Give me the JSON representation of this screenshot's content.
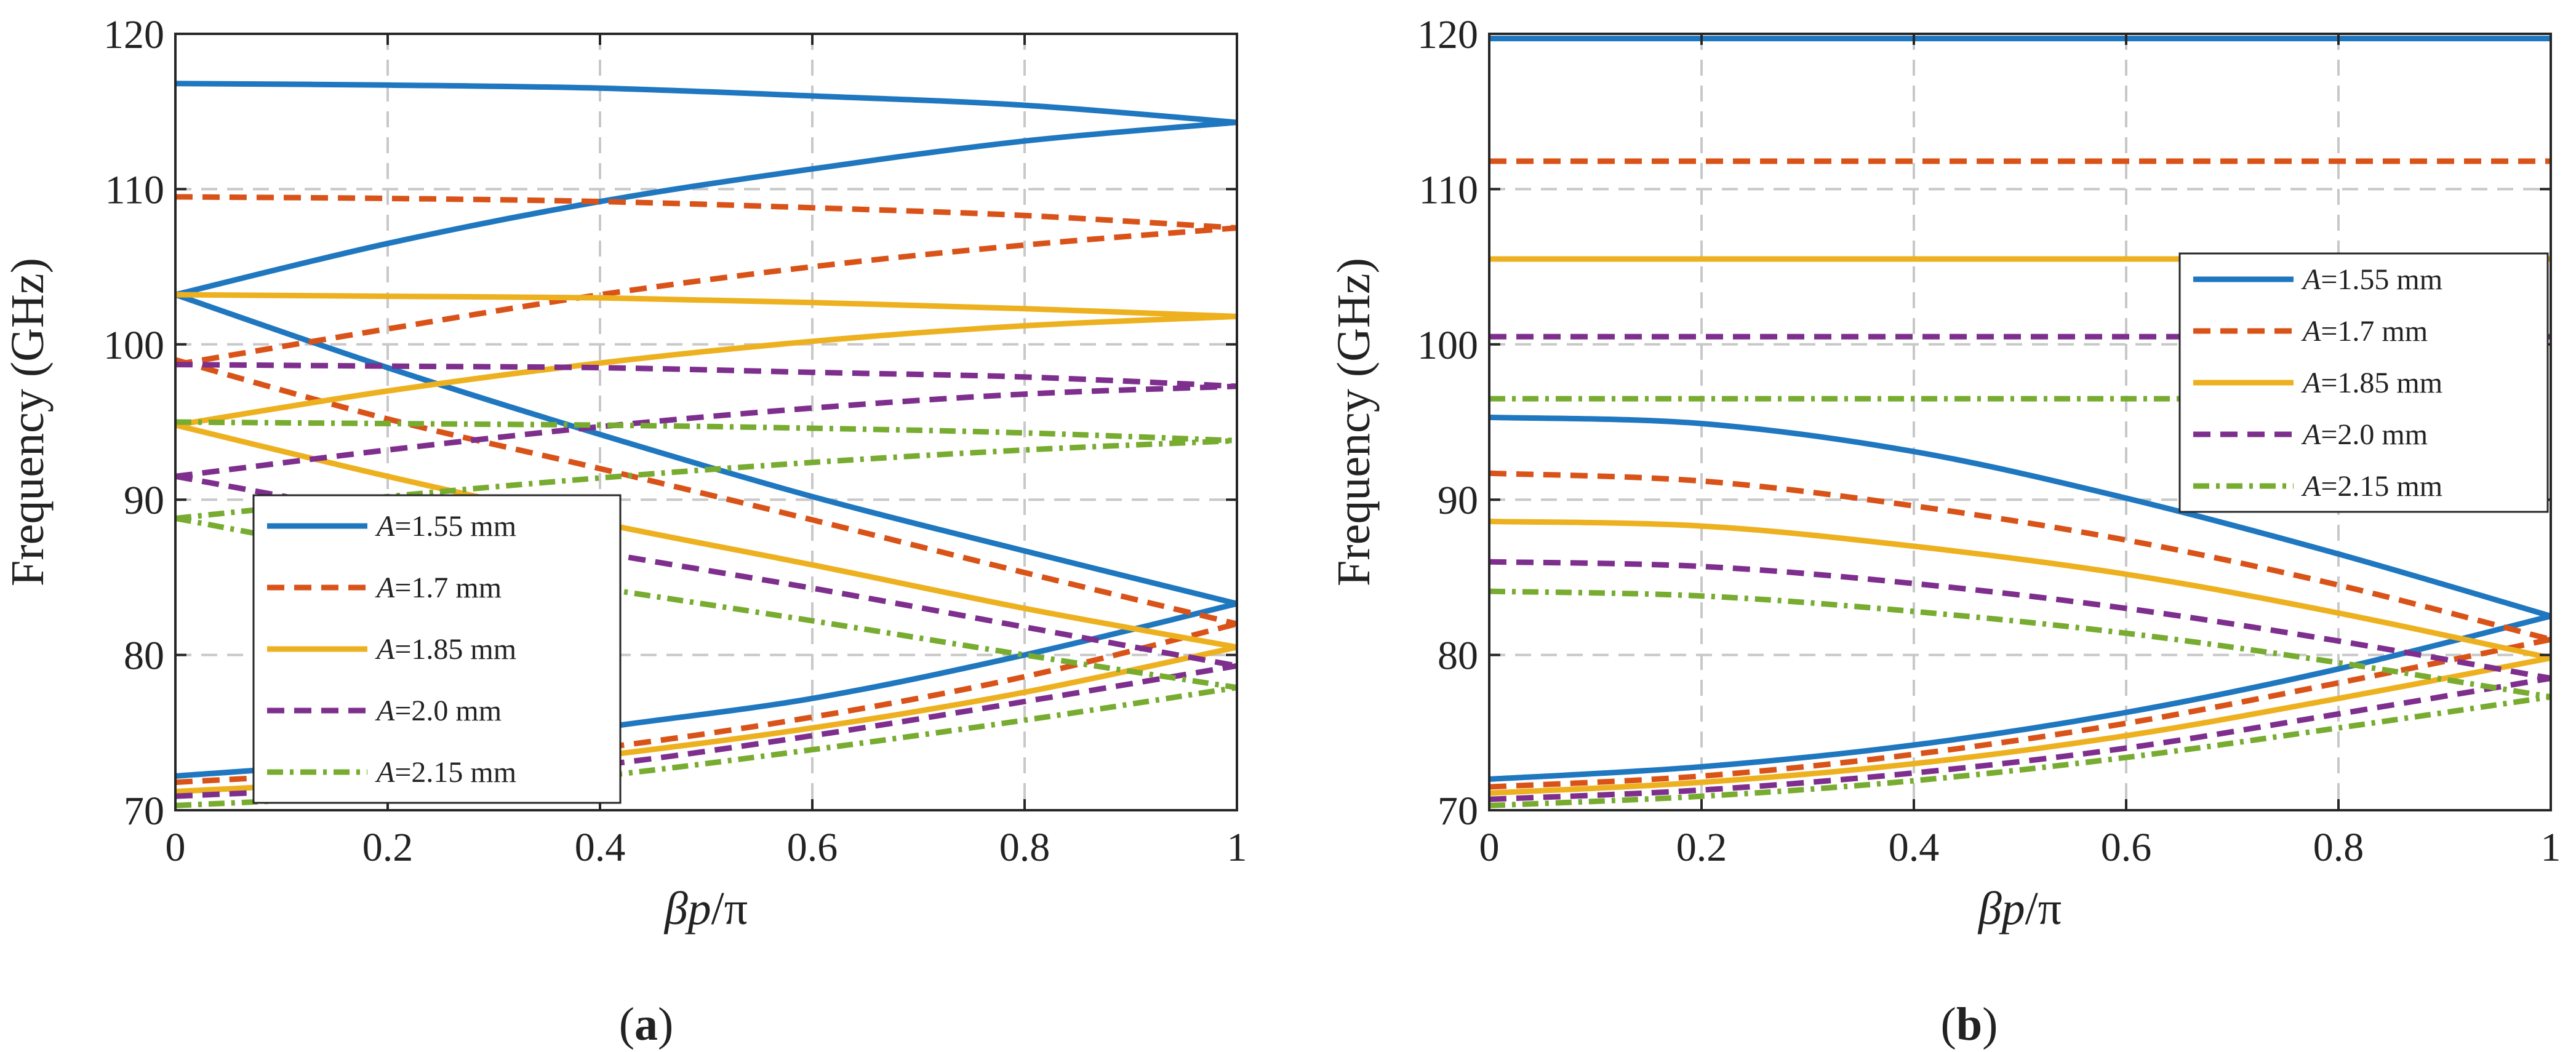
{
  "chart_data": [
    {
      "type": "line",
      "panel_label": "a",
      "caption": [
        "(",
        "a",
        ")"
      ],
      "xlabel": [
        "β",
        "p",
        "/π"
      ],
      "ylabel": "Frequency (GHz)",
      "xlim": [
        0,
        1
      ],
      "ylim": [
        70,
        120
      ],
      "xticks": [
        0,
        0.2,
        0.4,
        0.6,
        0.8,
        1
      ],
      "xtick_labels": [
        "0",
        "0.2",
        "0.4",
        "0.6",
        "0.8",
        "1"
      ],
      "yticks": [
        70,
        80,
        90,
        100,
        110,
        120
      ],
      "ytick_labels": [
        "70",
        "80",
        "90",
        "100",
        "110",
        "120"
      ],
      "grid": true,
      "legend_position": "lower-left",
      "series": [
        {
          "name": "A=1.55 mm",
          "legend_var": "A",
          "legend_rest": "=1.55 mm",
          "color": "#1f77c0",
          "style": "solid",
          "modes": [
            {
              "x": [
                0,
                0.2,
                0.4,
                0.6,
                0.8,
                1
              ],
              "y": [
                72.2,
                73.3,
                75.3,
                77.2,
                80.0,
                83.3
              ]
            },
            {
              "x": [
                0,
                0.2,
                0.4,
                0.6,
                0.8,
                1
              ],
              "y": [
                103.2,
                98.5,
                94.2,
                90.2,
                86.7,
                83.3
              ]
            },
            {
              "x": [
                0,
                0.2,
                0.4,
                0.6,
                0.8,
                1
              ],
              "y": [
                103.2,
                106.5,
                109.2,
                111.3,
                113.1,
                114.3
              ]
            },
            {
              "x": [
                0,
                0.2,
                0.4,
                0.6,
                0.8,
                1
              ],
              "y": [
                116.8,
                116.7,
                116.5,
                116.0,
                115.4,
                114.3
              ]
            }
          ]
        },
        {
          "name": "A=1.7 mm",
          "legend_var": "A",
          "legend_rest": "=1.7 mm",
          "color": "#d95319",
          "style": "dash",
          "modes": [
            {
              "x": [
                0,
                0.2,
                0.4,
                0.6,
                0.8,
                1
              ],
              "y": [
                71.8,
                72.6,
                74.0,
                76.0,
                78.6,
                82.0
              ]
            },
            {
              "x": [
                0,
                0.2,
                0.4,
                0.6,
                0.8,
                1
              ],
              "y": [
                99.0,
                95.2,
                92.0,
                88.7,
                85.3,
                82.0
              ]
            },
            {
              "x": [
                0,
                0.2,
                0.4,
                0.6,
                0.8,
                1
              ],
              "y": [
                98.7,
                101.0,
                103.2,
                105.0,
                106.4,
                107.5
              ]
            },
            {
              "x": [
                0,
                0.2,
                0.4,
                0.6,
                0.8,
                1
              ],
              "y": [
                109.5,
                109.4,
                109.2,
                108.8,
                108.3,
                107.5
              ]
            }
          ]
        },
        {
          "name": "A=1.85 mm",
          "legend_var": "A",
          "legend_rest": "=1.85 mm",
          "color": "#edb120",
          "style": "solid",
          "modes": [
            {
              "x": [
                0,
                0.2,
                0.4,
                0.6,
                0.8,
                1
              ],
              "y": [
                71.2,
                72.0,
                73.5,
                75.3,
                77.6,
                80.5
              ]
            },
            {
              "x": [
                0,
                0.2,
                0.4,
                0.6,
                0.8,
                1
              ],
              "y": [
                94.8,
                91.5,
                88.5,
                85.8,
                83.0,
                80.5
              ]
            },
            {
              "x": [
                0,
                0.2,
                0.4,
                0.6,
                0.8,
                1
              ],
              "y": [
                94.8,
                97.0,
                98.8,
                100.2,
                101.2,
                101.8
              ]
            },
            {
              "x": [
                0,
                0.2,
                0.4,
                0.6,
                0.8,
                1
              ],
              "y": [
                103.2,
                103.1,
                103.0,
                102.7,
                102.3,
                101.8
              ]
            }
          ]
        },
        {
          "name": "A=2.0 mm",
          "legend_var": "A",
          "legend_rest": "=2.0 mm",
          "color": "#7e2f8e",
          "style": "dash",
          "modes": [
            {
              "x": [
                0,
                0.2,
                0.4,
                0.6,
                0.8,
                1
              ],
              "y": [
                70.9,
                71.6,
                72.9,
                74.8,
                77.0,
                79.3
              ]
            },
            {
              "x": [
                0,
                0.2,
                0.4,
                0.6,
                0.8,
                1
              ],
              "y": [
                91.5,
                89.0,
                86.6,
                84.3,
                81.8,
                79.3
              ]
            },
            {
              "x": [
                0,
                0.2,
                0.4,
                0.6,
                0.8,
                1
              ],
              "y": [
                91.5,
                93.2,
                94.7,
                95.9,
                96.8,
                97.3
              ]
            },
            {
              "x": [
                0,
                0.2,
                0.4,
                0.6,
                0.8,
                1
              ],
              "y": [
                98.7,
                98.6,
                98.5,
                98.2,
                97.9,
                97.3
              ]
            }
          ]
        },
        {
          "name": "A=2.15 mm",
          "legend_var": "A",
          "legend_rest": "=2.15 mm",
          "color": "#77ac30",
          "style": "dashdot",
          "modes": [
            {
              "x": [
                0,
                0.2,
                0.4,
                0.6,
                0.8,
                1
              ],
              "y": [
                70.3,
                71.0,
                72.2,
                73.9,
                75.8,
                77.9
              ]
            },
            {
              "x": [
                0,
                0.2,
                0.4,
                0.6,
                0.8,
                1
              ],
              "y": [
                88.8,
                86.3,
                84.3,
                82.2,
                80.0,
                77.9
              ]
            },
            {
              "x": [
                0,
                0.2,
                0.4,
                0.6,
                0.8,
                1
              ],
              "y": [
                88.8,
                90.2,
                91.4,
                92.4,
                93.2,
                93.8
              ]
            },
            {
              "x": [
                0,
                0.2,
                0.4,
                0.6,
                0.8,
                1
              ],
              "y": [
                95.0,
                94.9,
                94.8,
                94.6,
                94.3,
                93.8
              ]
            }
          ]
        }
      ]
    },
    {
      "type": "line",
      "panel_label": "b",
      "caption": [
        "(",
        "b",
        ")"
      ],
      "xlabel": [
        "β",
        "p",
        "/π"
      ],
      "ylabel": "Frequency (GHz)",
      "xlim": [
        0,
        1
      ],
      "ylim": [
        70,
        120
      ],
      "xticks": [
        0,
        0.2,
        0.4,
        0.6,
        0.8,
        1
      ],
      "xtick_labels": [
        "0",
        "0.2",
        "0.4",
        "0.6",
        "0.8",
        "1"
      ],
      "yticks": [
        70,
        80,
        90,
        100,
        110,
        120
      ],
      "ytick_labels": [
        "70",
        "80",
        "90",
        "100",
        "110",
        "120"
      ],
      "grid": true,
      "legend_position": "upper-right",
      "series": [
        {
          "name": "A=1.55 mm",
          "legend_var": "A",
          "legend_rest": "=1.55 mm",
          "color": "#1f77c0",
          "style": "solid",
          "modes": [
            {
              "x": [
                0,
                0.2,
                0.4,
                0.6,
                0.8,
                1
              ],
              "y": [
                72.0,
                72.8,
                74.2,
                76.3,
                79.1,
                82.5
              ]
            },
            {
              "x": [
                0,
                0.2,
                0.4,
                0.6,
                0.8,
                1
              ],
              "y": [
                95.3,
                94.9,
                93.1,
                90.1,
                86.5,
                82.5
              ]
            },
            {
              "x": [
                0,
                1
              ],
              "y": [
                119.7,
                119.7
              ]
            }
          ]
        },
        {
          "name": "A=1.7 mm",
          "legend_var": "A",
          "legend_rest": "=1.7 mm",
          "color": "#d95319",
          "style": "dash",
          "modes": [
            {
              "x": [
                0,
                0.2,
                0.4,
                0.6,
                0.8,
                1
              ],
              "y": [
                71.5,
                72.2,
                73.6,
                75.6,
                78.2,
                81.0
              ]
            },
            {
              "x": [
                0,
                0.2,
                0.4,
                0.6,
                0.8,
                1
              ],
              "y": [
                91.7,
                91.2,
                89.6,
                87.4,
                84.5,
                81.0
              ]
            },
            {
              "x": [
                0,
                1
              ],
              "y": [
                111.8,
                111.8
              ]
            }
          ]
        },
        {
          "name": "A=1.85 mm",
          "legend_var": "A",
          "legend_rest": "=1.85 mm",
          "color": "#edb120",
          "style": "solid",
          "modes": [
            {
              "x": [
                0,
                0.2,
                0.4,
                0.6,
                0.8,
                1
              ],
              "y": [
                71.1,
                71.8,
                73.0,
                74.8,
                77.2,
                79.8
              ]
            },
            {
              "x": [
                0,
                0.2,
                0.4,
                0.6,
                0.8,
                1
              ],
              "y": [
                88.6,
                88.3,
                87.0,
                85.2,
                82.7,
                79.8
              ]
            },
            {
              "x": [
                0,
                1
              ],
              "y": [
                105.5,
                105.5
              ]
            }
          ]
        },
        {
          "name": "A=2.0 mm",
          "legend_var": "A",
          "legend_rest": "=2.0 mm",
          "color": "#7e2f8e",
          "style": "dash",
          "modes": [
            {
              "x": [
                0,
                0.2,
                0.4,
                0.6,
                0.8,
                1
              ],
              "y": [
                70.7,
                71.3,
                72.4,
                74.0,
                76.2,
                78.5
              ]
            },
            {
              "x": [
                0,
                0.2,
                0.4,
                0.6,
                0.8,
                1
              ],
              "y": [
                86.0,
                85.7,
                84.6,
                83.0,
                80.9,
                78.5
              ]
            },
            {
              "x": [
                0,
                1
              ],
              "y": [
                100.5,
                100.5
              ]
            }
          ]
        },
        {
          "name": "A=2.15 mm",
          "legend_var": "A",
          "legend_rest": "=2.15 mm",
          "color": "#77ac30",
          "style": "dashdot",
          "modes": [
            {
              "x": [
                0,
                0.2,
                0.4,
                0.6,
                0.8,
                1
              ],
              "y": [
                70.3,
                70.9,
                71.9,
                73.4,
                75.3,
                77.3
              ]
            },
            {
              "x": [
                0,
                0.2,
                0.4,
                0.6,
                0.8,
                1
              ],
              "y": [
                84.1,
                83.8,
                82.8,
                81.4,
                79.5,
                77.3
              ]
            },
            {
              "x": [
                0,
                1
              ],
              "y": [
                96.5,
                96.5
              ]
            }
          ]
        }
      ]
    }
  ]
}
